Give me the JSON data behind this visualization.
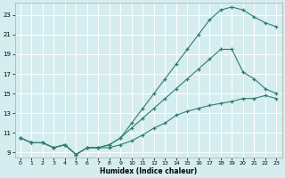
{
  "xlabel": "Humidex (Indice chaleur)",
  "bg_color": "#d6edf0",
  "grid_color": "#ffffff",
  "line_color": "#2e7d6e",
  "xlim": [
    -0.5,
    23.5
  ],
  "ylim": [
    8.5,
    24.2
  ],
  "xticks": [
    0,
    1,
    2,
    3,
    4,
    5,
    6,
    7,
    8,
    9,
    10,
    11,
    12,
    13,
    14,
    15,
    16,
    17,
    18,
    19,
    20,
    21,
    22,
    23
  ],
  "yticks": [
    9,
    11,
    13,
    15,
    17,
    19,
    21,
    23
  ],
  "line1_x": [
    0,
    1,
    2,
    3,
    4,
    5,
    6,
    7,
    8,
    9,
    10,
    11,
    12,
    13,
    14,
    15,
    16,
    17,
    18,
    19,
    20,
    21,
    22,
    23
  ],
  "line1_y": [
    10.5,
    10.0,
    10.0,
    9.5,
    9.8,
    8.8,
    9.5,
    9.5,
    9.5,
    9.8,
    10.2,
    10.8,
    11.5,
    12.0,
    12.8,
    13.2,
    13.5,
    13.8,
    14.0,
    14.2,
    14.5,
    14.5,
    14.8,
    14.5
  ],
  "line2_x": [
    0,
    1,
    2,
    3,
    4,
    5,
    6,
    7,
    8,
    9,
    10,
    11,
    12,
    13,
    14,
    15,
    16,
    17,
    18,
    19,
    20,
    21,
    22,
    23
  ],
  "line2_y": [
    10.5,
    10.0,
    10.0,
    9.5,
    9.8,
    8.8,
    9.5,
    9.5,
    9.8,
    10.5,
    12.0,
    13.5,
    15.0,
    16.5,
    18.0,
    19.5,
    21.0,
    22.5,
    23.5,
    23.8,
    23.5,
    22.8,
    22.2,
    21.8
  ],
  "line3_x": [
    0,
    1,
    2,
    3,
    4,
    5,
    6,
    7,
    8,
    9,
    10,
    11,
    12,
    13,
    14,
    15,
    16,
    17,
    18,
    19,
    20,
    21,
    22,
    23
  ],
  "line3_y": [
    10.5,
    10.0,
    10.0,
    9.5,
    9.8,
    8.8,
    9.5,
    9.5,
    9.8,
    10.5,
    11.5,
    12.5,
    13.5,
    14.5,
    15.5,
    16.5,
    17.5,
    18.5,
    19.5,
    19.5,
    17.2,
    16.5,
    15.5,
    15.0
  ]
}
